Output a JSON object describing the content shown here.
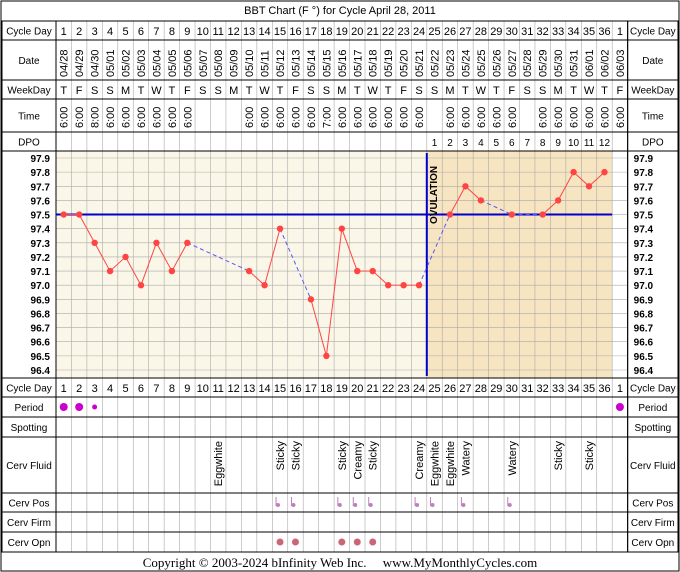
{
  "title": "BBT Chart (F °) for Cycle April 28, 2011",
  "row_labels": {
    "cycle_day": "Cycle Day",
    "date": "Date",
    "weekday": "WeekDay",
    "time": "Time",
    "dpo": "DPO",
    "period": "Period",
    "spotting": "Spotting",
    "cerv_fluid": "Cerv Fluid",
    "cerv_pos": "Cerv Pos",
    "cerv_firm": "Cerv Firm",
    "cerv_opn": "Cerv Opn"
  },
  "ovulation_label": "OVULATION",
  "footer": "Copyright © 2003-2024 bInfinity Web Inc.     www.MyMonthlyCycles.com",
  "colors": {
    "temp_line": "#ff4444",
    "coverline": "#0000cc",
    "ovulation_line": "#0000cc",
    "grid": "#aaaaaa",
    "pre_bg": "#fbf7e8",
    "post_bg": "#f7e4c1",
    "period_dot": "#cc00cc",
    "pos_dot": "#c080c0",
    "opn_dot": "#cc6677",
    "header_bg": "#ffffff"
  },
  "chart_data": {
    "type": "line",
    "title": "BBT Chart (F °) for Cycle April 28, 2011",
    "cycle_days": [
      "1",
      "2",
      "3",
      "4",
      "5",
      "6",
      "7",
      "8",
      "9",
      "10",
      "11",
      "12",
      "13",
      "14",
      "15",
      "16",
      "17",
      "18",
      "19",
      "20",
      "21",
      "22",
      "23",
      "24",
      "25",
      "26",
      "27",
      "28",
      "29",
      "30",
      "31",
      "32",
      "33",
      "34",
      "35",
      "36",
      "1"
    ],
    "dates": [
      "04/28",
      "04/29",
      "04/30",
      "05/01",
      "05/02",
      "05/03",
      "05/04",
      "05/05",
      "05/06",
      "05/07",
      "05/08",
      "05/09",
      "05/10",
      "05/11",
      "05/12",
      "05/13",
      "05/14",
      "05/15",
      "05/16",
      "05/17",
      "05/18",
      "05/19",
      "05/20",
      "05/21",
      "05/22",
      "05/23",
      "05/24",
      "05/25",
      "05/26",
      "05/27",
      "05/28",
      "05/29",
      "05/30",
      "05/31",
      "06/01",
      "06/02",
      "06/03"
    ],
    "weekdays": [
      "T",
      "F",
      "S",
      "S",
      "M",
      "T",
      "W",
      "T",
      "F",
      "S",
      "S",
      "M",
      "T",
      "W",
      "T",
      "F",
      "S",
      "S",
      "M",
      "T",
      "W",
      "T",
      "F",
      "S",
      "S",
      "M",
      "T",
      "W",
      "T",
      "F",
      "S",
      "S",
      "M",
      "T",
      "W",
      "T",
      "F"
    ],
    "times": [
      "6:00",
      "6:00",
      "8:00",
      "6:00",
      "6:00",
      "6:00",
      "6:00",
      "6:00",
      "6:00",
      "",
      "",
      "",
      "6:00",
      "6:00",
      "6:00",
      "6:00",
      "6:00",
      "7:00",
      "6:00",
      "6:00",
      "6:00",
      "6:00",
      "6:00",
      "6:00",
      "",
      "6:00",
      "6:00",
      "6:00",
      "6:00",
      "6:00",
      "",
      "6:00",
      "6:00",
      "6:00",
      "6:00",
      "6:00",
      "6:00"
    ],
    "dpo": [
      "",
      "",
      "",
      "",
      "",
      "",
      "",
      "",
      "",
      "",
      "",
      "",
      "",
      "",
      "",
      "",
      "",
      "",
      "",
      "",
      "",
      "",
      "",
      "",
      "1",
      "2",
      "3",
      "4",
      "5",
      "6",
      "7",
      "8",
      "9",
      "10",
      "11",
      "12",
      ""
    ],
    "temps": [
      97.5,
      97.5,
      97.3,
      97.1,
      97.2,
      97.0,
      97.3,
      97.1,
      97.3,
      null,
      null,
      null,
      97.1,
      97.0,
      97.4,
      null,
      96.9,
      96.5,
      97.4,
      97.1,
      97.1,
      97.0,
      97.0,
      97.0,
      null,
      97.5,
      97.7,
      97.6,
      null,
      97.5,
      null,
      97.5,
      97.6,
      97.8,
      97.7,
      97.8,
      null
    ],
    "y_ticks": [
      "97.9",
      "97.8",
      "97.7",
      "97.6",
      "97.5",
      "97.4",
      "97.3",
      "97.2",
      "97.1",
      "97.0",
      "96.9",
      "96.8",
      "96.7",
      "96.6",
      "96.5",
      "96.4"
    ],
    "ylim": [
      96.4,
      97.9
    ],
    "coverline": 97.5,
    "ovulation_day": 24,
    "period": [
      "big",
      "big",
      "small",
      "",
      "",
      "",
      "",
      "",
      "",
      "",
      "",
      "",
      "",
      "",
      "",
      "",
      "",
      "",
      "",
      "",
      "",
      "",
      "",
      "",
      "",
      "",
      "",
      "",
      "",
      "",
      "",
      "",
      "",
      "",
      "",
      "",
      "big"
    ],
    "spotting": [],
    "cerv_fluid": [
      "",
      "",
      "",
      "",
      "",
      "",
      "",
      "",
      "",
      "",
      "Eggwhite",
      "",
      "",
      "",
      "Sticky",
      "Sticky",
      "",
      "",
      "Sticky",
      "Creamy",
      "Sticky",
      "",
      "",
      "Creamy",
      "Eggwhite",
      "Eggwhite",
      "Watery",
      "",
      "",
      "Watery",
      "",
      "",
      "Sticky",
      "",
      "Sticky",
      "",
      ""
    ],
    "cerv_pos": [
      0,
      0,
      0,
      0,
      0,
      0,
      0,
      0,
      0,
      0,
      0,
      0,
      0,
      0,
      1,
      1,
      0,
      0,
      1,
      1,
      1,
      0,
      0,
      1,
      1,
      0,
      1,
      0,
      0,
      1,
      0,
      0,
      0,
      0,
      0,
      0,
      0
    ],
    "cerv_opn": [
      0,
      0,
      0,
      0,
      0,
      0,
      0,
      0,
      0,
      0,
      0,
      0,
      0,
      0,
      1,
      1,
      0,
      0,
      1,
      1,
      1,
      0,
      0,
      0,
      0,
      0,
      0,
      0,
      0,
      0,
      0,
      0,
      0,
      0,
      0,
      0,
      0
    ]
  }
}
